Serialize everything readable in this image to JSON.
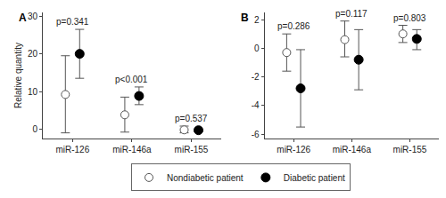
{
  "chart_data": [
    {
      "type": "scatter",
      "title": "A",
      "y_label": "Relative quantity",
      "categories": [
        "miR-126",
        "miR-146a",
        "miR-155"
      ],
      "series": [
        {
          "name": "Nondiabetic patient",
          "color": "#ffffff",
          "marker": "circle-open",
          "values": [
            9.2,
            3.8,
            -0.2
          ],
          "error_plus": [
            10.3,
            4.7,
            1.0
          ],
          "error_minus": [
            10.2,
            4.6,
            0.8
          ]
        },
        {
          "name": "Diabetic patient",
          "color": "#000000",
          "marker": "circle",
          "values": [
            20.0,
            8.8,
            -0.3
          ],
          "error_plus": [
            6.5,
            2.4,
            0.3
          ],
          "error_minus": [
            6.5,
            2.3,
            0.3
          ]
        }
      ],
      "annotations": [
        {
          "category": "miR-126",
          "text": "p=0.341"
        },
        {
          "category": "miR-146a",
          "text": "p<0.001"
        },
        {
          "category": "miR-155",
          "text": "p=0.537"
        }
      ],
      "ylim": [
        -2.5,
        31
      ],
      "yticks": [
        0,
        10,
        20,
        30
      ],
      "grid": false,
      "legend": "bottom"
    },
    {
      "type": "scatter",
      "title": "B",
      "categories": [
        "miR-126",
        "miR-146a",
        "miR-155"
      ],
      "series": [
        {
          "name": "Nondiabetic patient",
          "color": "#ffffff",
          "marker": "circle-open",
          "values": [
            -0.3,
            0.6,
            1.0
          ],
          "error_plus": [
            1.3,
            1.3,
            0.6
          ],
          "error_minus": [
            1.3,
            1.2,
            0.6
          ]
        },
        {
          "name": "Diabetic patient",
          "color": "#000000",
          "marker": "circle",
          "values": [
            -2.8,
            -0.8,
            0.65
          ],
          "error_plus": [
            2.7,
            2.1,
            0.65
          ],
          "error_minus": [
            2.7,
            2.1,
            0.75
          ]
        }
      ],
      "annotations": [
        {
          "category": "miR-126",
          "text": "p=0.286"
        },
        {
          "category": "miR-146a",
          "text": "p=0.117"
        },
        {
          "category": "miR-155",
          "text": "p=0.803"
        }
      ],
      "ylim": [
        -6.3,
        2.5
      ],
      "yticks": [
        -6,
        -4,
        -2,
        0,
        2
      ],
      "grid": false,
      "legend": "bottom"
    }
  ]
}
